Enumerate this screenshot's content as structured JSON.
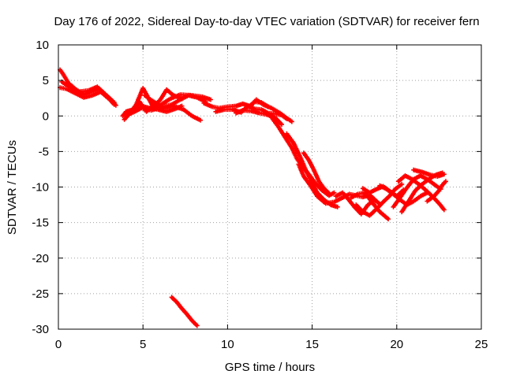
{
  "chart_data": {
    "type": "scatter",
    "title": "Day 176 of 2022, Sidereal Day-to-day VTEC variation (SDTVAR) for receiver fern",
    "xlabel": "GPS time / hours",
    "ylabel": "SDTVAR / TECUs",
    "xlim": [
      0,
      25
    ],
    "ylim": [
      -30,
      10
    ],
    "xticks": [
      0,
      5,
      10,
      15,
      20,
      25
    ],
    "yticks": [
      -30,
      -25,
      -20,
      -15,
      -10,
      -5,
      0,
      5,
      10
    ],
    "grid": true,
    "marker": "+",
    "series": [
      {
        "name": "SDTVAR",
        "color": "#ff0000",
        "tracks": [
          [
            [
              0.1,
              6.5
            ],
            [
              0.3,
              5.8
            ],
            [
              0.6,
              4.6
            ],
            [
              1.0,
              3.8
            ],
            [
              1.5,
              3.0
            ],
            [
              2.0,
              3.5
            ],
            [
              2.4,
              3.8
            ],
            [
              2.8,
              2.8
            ],
            [
              3.2,
              2.0
            ],
            [
              3.4,
              1.5
            ]
          ],
          [
            [
              0.1,
              4.0
            ],
            [
              0.5,
              3.8
            ],
            [
              1.0,
              3.2
            ],
            [
              1.5,
              2.6
            ],
            [
              2.0,
              2.9
            ],
            [
              2.5,
              3.4
            ],
            [
              3.0,
              2.4
            ],
            [
              3.3,
              1.6
            ]
          ],
          [
            [
              0.2,
              4.8
            ],
            [
              0.6,
              4.2
            ],
            [
              1.2,
              3.4
            ],
            [
              1.8,
              3.6
            ],
            [
              2.3,
              4.1
            ],
            [
              2.8,
              3.0
            ],
            [
              3.3,
              1.9
            ]
          ],
          [
            [
              3.8,
              0.0
            ],
            [
              4.0,
              0.6
            ],
            [
              4.4,
              0.9
            ],
            [
              4.9,
              1.4
            ],
            [
              5.4,
              1.1
            ],
            [
              5.9,
              0.9
            ],
            [
              6.4,
              0.6
            ],
            [
              6.9,
              1.0
            ],
            [
              7.3,
              1.4
            ]
          ],
          [
            [
              3.9,
              -0.5
            ],
            [
              4.2,
              0.3
            ],
            [
              4.6,
              1.6
            ],
            [
              5.0,
              3.9
            ],
            [
              5.3,
              2.6
            ],
            [
              5.6,
              1.3
            ],
            [
              6.0,
              2.2
            ],
            [
              6.4,
              3.7
            ],
            [
              6.8,
              2.9
            ],
            [
              7.3,
              2.4
            ]
          ],
          [
            [
              4.1,
              0.2
            ],
            [
              4.5,
              0.6
            ],
            [
              4.9,
              1.1
            ],
            [
              5.5,
              0.8
            ],
            [
              6.1,
              1.3
            ],
            [
              6.7,
              1.6
            ],
            [
              7.2,
              2.3
            ],
            [
              7.7,
              2.9
            ],
            [
              8.2,
              2.6
            ],
            [
              8.7,
              2.0
            ]
          ],
          [
            [
              4.3,
              0.4
            ],
            [
              4.8,
              2.0
            ],
            [
              5.2,
              0.6
            ],
            [
              5.7,
              1.6
            ],
            [
              6.3,
              1.1
            ],
            [
              6.8,
              1.4
            ],
            [
              7.4,
              0.9
            ],
            [
              7.9,
              0.0
            ],
            [
              8.4,
              -0.6
            ]
          ],
          [
            [
              5.1,
              2.9
            ],
            [
              5.5,
              2.2
            ],
            [
              6.0,
              1.5
            ],
            [
              6.6,
              2.4
            ],
            [
              7.2,
              3.0
            ],
            [
              7.9,
              2.9
            ],
            [
              8.5,
              2.7
            ],
            [
              9.0,
              2.3
            ]
          ],
          [
            [
              8.6,
              1.8
            ],
            [
              9.1,
              1.3
            ],
            [
              9.5,
              1.1
            ],
            [
              10.0,
              1.3
            ],
            [
              10.5,
              1.4
            ],
            [
              10.9,
              1.7
            ],
            [
              11.3,
              1.4
            ],
            [
              11.6,
              2.0
            ],
            [
              12.0,
              1.9
            ],
            [
              12.4,
              1.3
            ]
          ],
          [
            [
              9.3,
              0.6
            ],
            [
              9.8,
              0.9
            ],
            [
              10.3,
              0.9
            ],
            [
              10.8,
              0.5
            ],
            [
              11.2,
              1.4
            ],
            [
              11.6,
              1.0
            ],
            [
              12.0,
              0.9
            ],
            [
              12.4,
              0.4
            ],
            [
              12.8,
              0.3
            ],
            [
              13.2,
              0.1
            ],
            [
              13.5,
              -0.4
            ]
          ],
          [
            [
              10.5,
              0.4
            ],
            [
              10.9,
              0.8
            ],
            [
              11.4,
              0.7
            ],
            [
              11.9,
              0.4
            ],
            [
              12.3,
              0.2
            ],
            [
              12.8,
              -0.2
            ],
            [
              13.2,
              -1.2
            ]
          ],
          [
            [
              11.3,
              1.2
            ],
            [
              11.7,
              2.3
            ],
            [
              12.1,
              1.6
            ],
            [
              12.6,
              1.1
            ],
            [
              13.1,
              0.4
            ],
            [
              13.5,
              -0.3
            ],
            [
              13.8,
              -0.8
            ]
          ],
          [
            [
              12.6,
              -0.2
            ],
            [
              13.0,
              -1.5
            ],
            [
              13.4,
              -3.0
            ],
            [
              13.8,
              -4.5
            ],
            [
              14.1,
              -6.0
            ],
            [
              14.4,
              -7.0
            ],
            [
              14.8,
              -8.2
            ],
            [
              15.2,
              -9.5
            ],
            [
              15.6,
              -10.5
            ],
            [
              16.0,
              -11.2
            ],
            [
              16.3,
              -10.8
            ]
          ],
          [
            [
              13.5,
              -2.5
            ],
            [
              13.9,
              -3.8
            ],
            [
              14.3,
              -5.8
            ],
            [
              14.6,
              -7.5
            ],
            [
              14.9,
              -9.0
            ],
            [
              15.3,
              -10.8
            ],
            [
              15.7,
              -11.8
            ],
            [
              16.1,
              -12.5
            ],
            [
              16.5,
              -12.8
            ]
          ],
          [
            [
              14.5,
              -5.2
            ],
            [
              14.8,
              -6.2
            ],
            [
              15.1,
              -7.6
            ],
            [
              15.4,
              -9.2
            ],
            [
              15.7,
              -10.2
            ],
            [
              16.0,
              -10.9
            ]
          ],
          [
            [
              14.2,
              -6.8
            ],
            [
              14.5,
              -8.5
            ],
            [
              14.9,
              -9.8
            ],
            [
              15.3,
              -11.3
            ],
            [
              15.8,
              -12.3
            ],
            [
              16.3,
              -12.1
            ],
            [
              16.8,
              -11.5
            ],
            [
              17.2,
              -11.0
            ],
            [
              17.6,
              -11.2
            ],
            [
              18.0,
              -11.4
            ],
            [
              18.4,
              -11.1
            ],
            [
              18.8,
              -12.0
            ]
          ],
          [
            [
              16.4,
              -11.3
            ],
            [
              16.8,
              -10.8
            ],
            [
              17.2,
              -11.9
            ],
            [
              17.5,
              -12.8
            ],
            [
              17.9,
              -13.8
            ],
            [
              18.3,
              -12.5
            ],
            [
              18.7,
              -11.8
            ],
            [
              19.0,
              -12.4
            ]
          ],
          [
            [
              17.3,
              -11.5
            ],
            [
              17.7,
              -11.0
            ],
            [
              18.1,
              -10.8
            ],
            [
              18.6,
              -12.3
            ],
            [
              19.0,
              -13.5
            ],
            [
              19.3,
              -14.1
            ],
            [
              19.5,
              -14.5
            ]
          ],
          [
            [
              17.6,
              -12.5
            ],
            [
              18.0,
              -13.5
            ],
            [
              18.4,
              -14.0
            ],
            [
              18.8,
              -13.1
            ],
            [
              19.2,
              -12.1
            ],
            [
              19.6,
              -11.2
            ],
            [
              19.9,
              -10.3
            ],
            [
              20.3,
              -9.6
            ]
          ],
          [
            [
              18.0,
              -10.2
            ],
            [
              18.4,
              -10.8
            ],
            [
              18.8,
              -10.3
            ],
            [
              19.2,
              -9.9
            ],
            [
              19.6,
              -10.6
            ],
            [
              20.0,
              -11.3
            ],
            [
              20.4,
              -10.4
            ]
          ],
          [
            [
              19.0,
              -9.8
            ],
            [
              19.4,
              -10.3
            ],
            [
              19.8,
              -11.0
            ],
            [
              20.2,
              -11.8
            ],
            [
              20.6,
              -12.5
            ],
            [
              21.0,
              -12.0
            ],
            [
              21.4,
              -11.3
            ],
            [
              21.8,
              -10.8
            ]
          ],
          [
            [
              19.8,
              -12.8
            ],
            [
              20.2,
              -11.5
            ],
            [
              20.6,
              -10.1
            ],
            [
              21.0,
              -8.9
            ],
            [
              21.4,
              -8.4
            ],
            [
              21.8,
              -8.9
            ],
            [
              22.2,
              -9.6
            ],
            [
              22.6,
              -10.3
            ]
          ],
          [
            [
              20.1,
              -9.2
            ],
            [
              20.5,
              -8.4
            ],
            [
              20.9,
              -8.9
            ],
            [
              21.3,
              -9.6
            ],
            [
              21.7,
              -10.4
            ],
            [
              22.1,
              -11.3
            ],
            [
              22.5,
              -12.3
            ],
            [
              22.8,
              -13.2
            ]
          ],
          [
            [
              20.3,
              -13.5
            ],
            [
              20.7,
              -12.0
            ],
            [
              21.1,
              -10.5
            ],
            [
              21.5,
              -9.6
            ],
            [
              21.9,
              -8.9
            ],
            [
              22.3,
              -8.3
            ],
            [
              22.7,
              -8.0
            ]
          ],
          [
            [
              21.0,
              -7.6
            ],
            [
              21.5,
              -7.9
            ],
            [
              22.0,
              -8.3
            ],
            [
              22.4,
              -8.5
            ],
            [
              22.8,
              -8.2
            ]
          ],
          [
            [
              21.8,
              -12.0
            ],
            [
              22.2,
              -11.3
            ],
            [
              22.5,
              -10.5
            ],
            [
              22.7,
              -9.7
            ],
            [
              22.9,
              -9.2
            ]
          ],
          [
            [
              6.7,
              -25.5
            ],
            [
              7.0,
              -26.2
            ],
            [
              7.3,
              -27.1
            ],
            [
              7.6,
              -27.9
            ],
            [
              7.9,
              -28.8
            ],
            [
              8.2,
              -29.5
            ]
          ]
        ]
      }
    ]
  }
}
